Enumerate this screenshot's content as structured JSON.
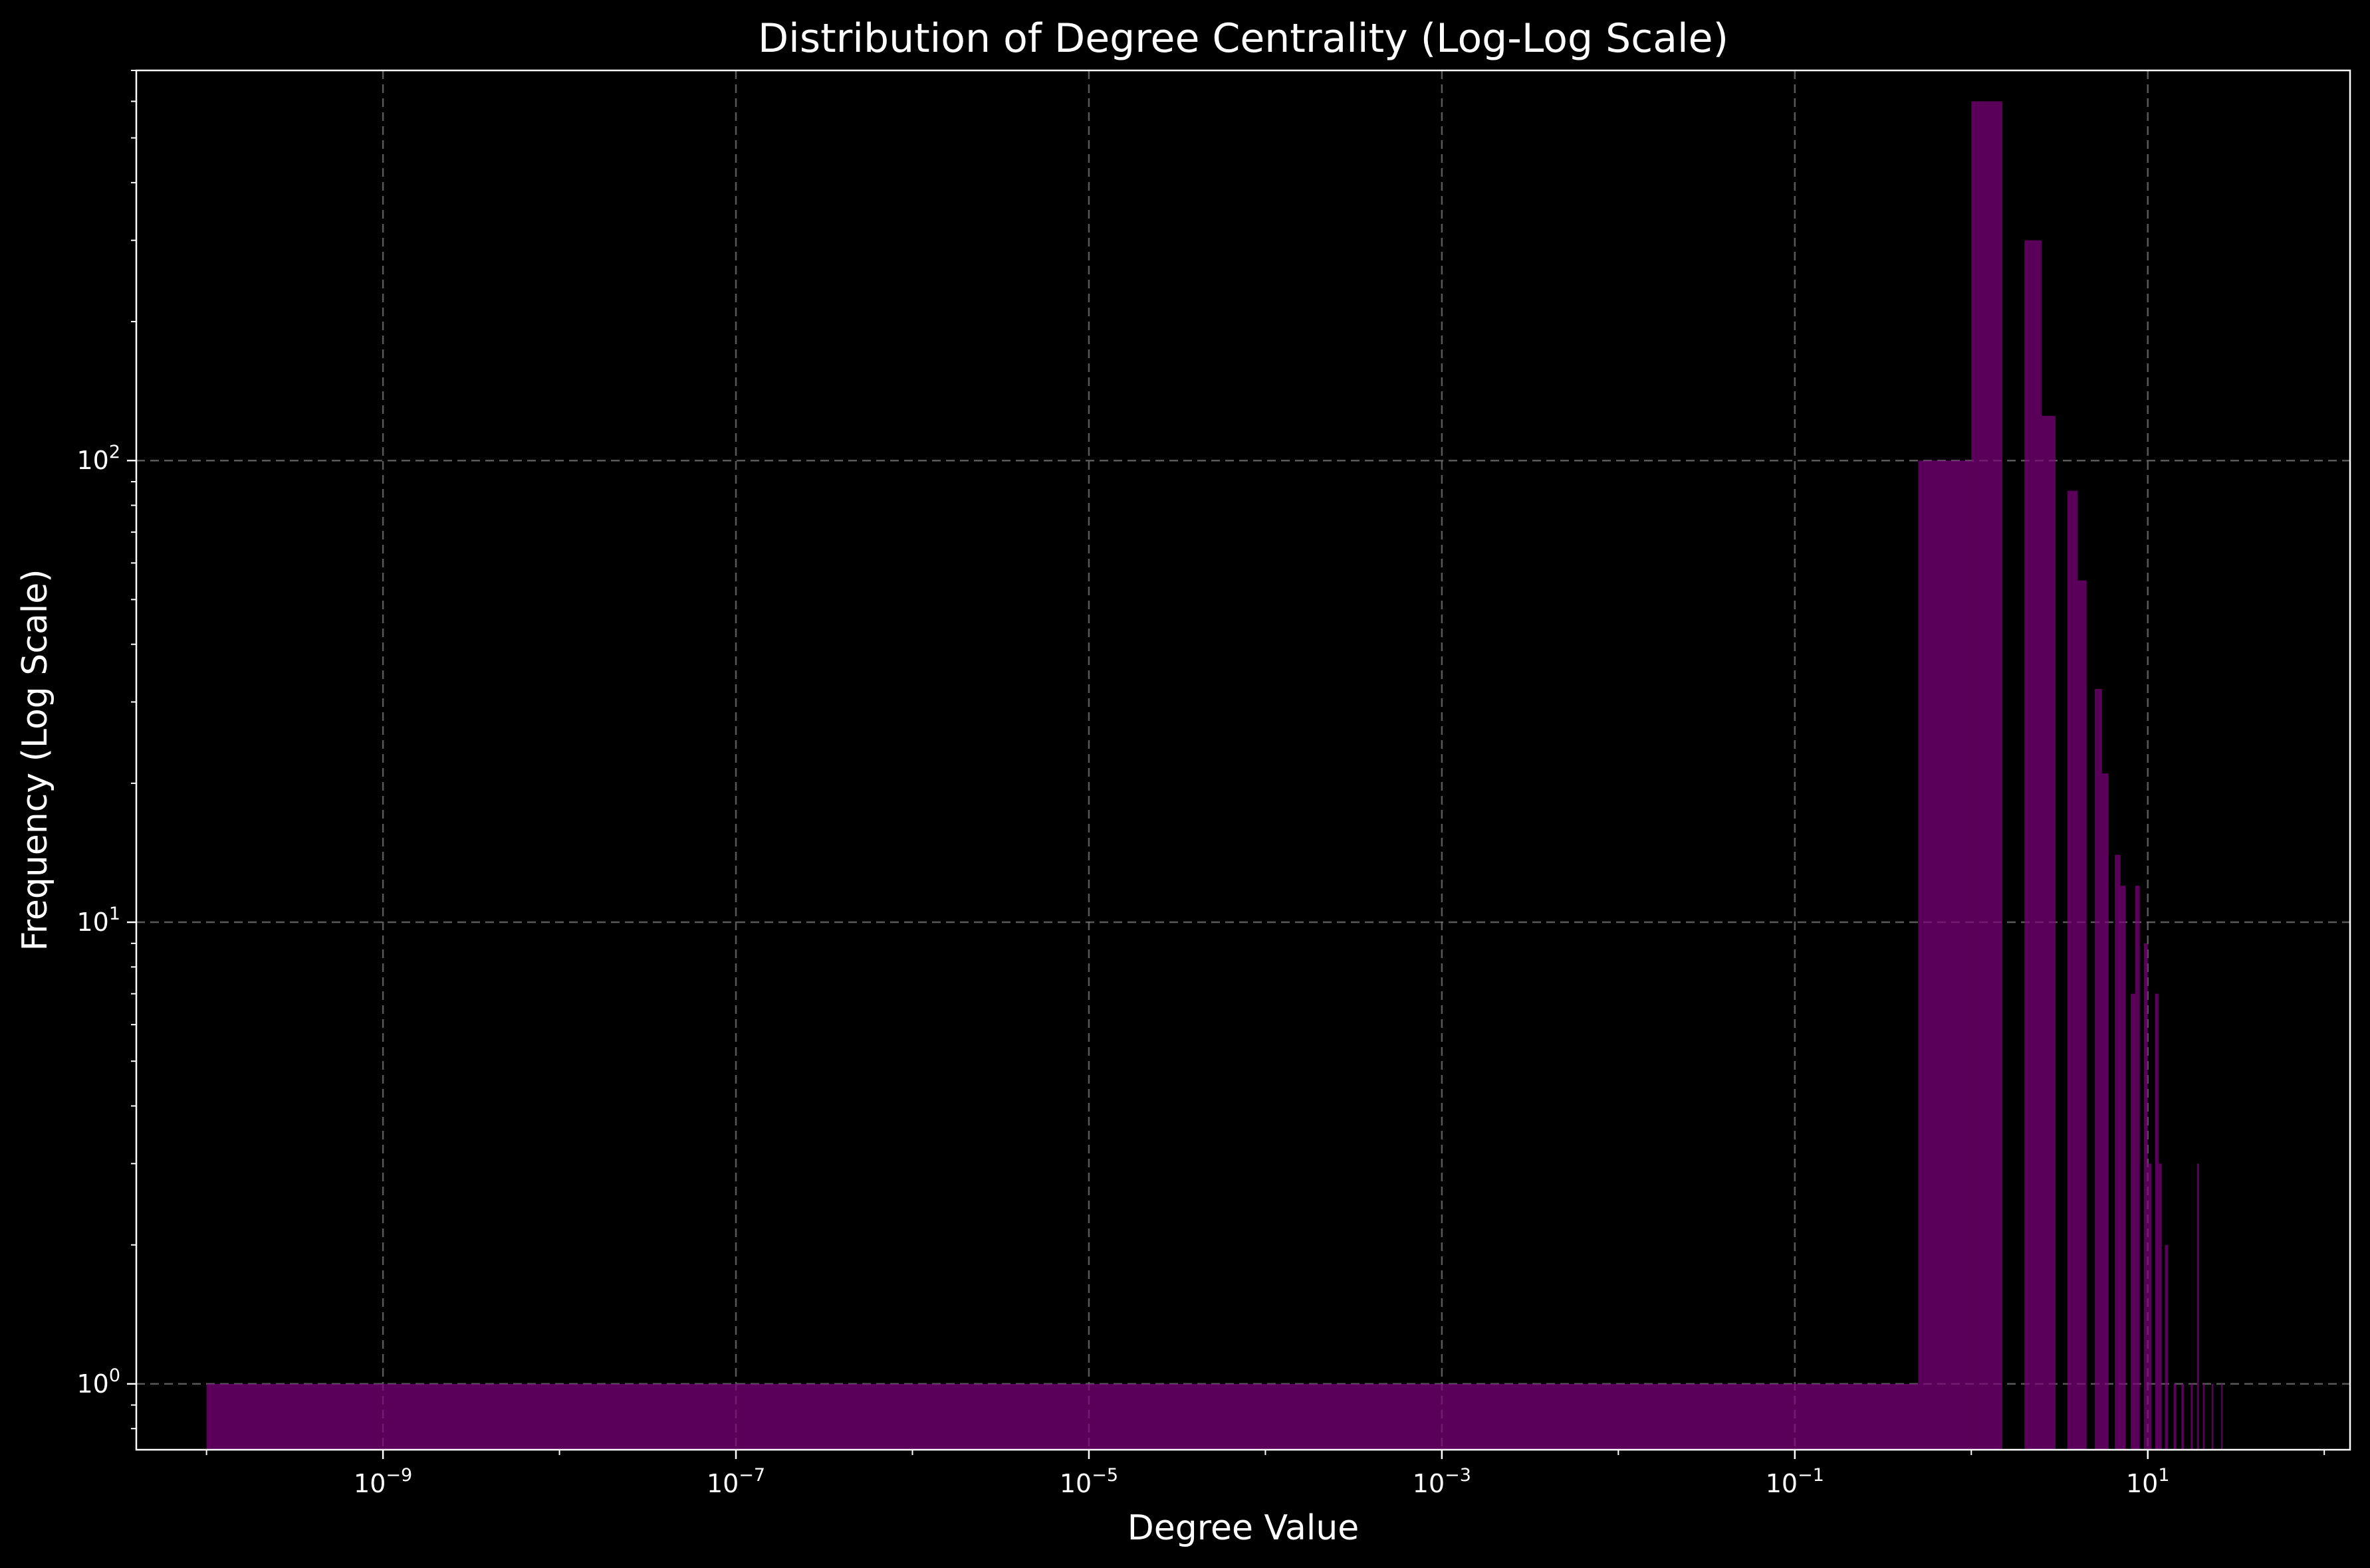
{
  "chart_data": {
    "type": "bar",
    "title": "Distribution of Degree Centrality (Log-Log Scale)",
    "xlabel": "Degree Value",
    "ylabel": "Frequency (Log Scale)",
    "xscale": "log",
    "yscale": "log",
    "xlim": [
      4e-11,
      140
    ],
    "ylim": [
      0.72,
      700
    ],
    "grid": true,
    "bar_color": "#800080",
    "bar_alpha": 0.7,
    "x_ticks": [
      {
        "base": "10",
        "exp": "−9",
        "value": 1e-09
      },
      {
        "base": "10",
        "exp": "−7",
        "value": 1e-07
      },
      {
        "base": "10",
        "exp": "−5",
        "value": 1e-05
      },
      {
        "base": "10",
        "exp": "−3",
        "value": 0.001
      },
      {
        "base": "10",
        "exp": "−1",
        "value": 0.1
      },
      {
        "base": "10",
        "exp": "1",
        "value": 10
      }
    ],
    "y_ticks": [
      {
        "base": "10",
        "exp": "0",
        "value": 1
      },
      {
        "base": "10",
        "exp": "1",
        "value": 10
      },
      {
        "base": "10",
        "exp": "2",
        "value": 100
      }
    ],
    "bars": [
      {
        "x0": 1e-10,
        "x1": 0.5,
        "value": 1
      },
      {
        "x0": 0.5,
        "x1": 1.0,
        "value": 100
      },
      {
        "x0": 1.0,
        "x1": 1.5,
        "value": 600
      },
      {
        "x0": 2.0,
        "x1": 2.5,
        "value": 300
      },
      {
        "x0": 2.5,
        "x1": 3.0,
        "value": 125
      },
      {
        "x0": 3.5,
        "x1": 4.0,
        "value": 86
      },
      {
        "x0": 4.0,
        "x1": 4.5,
        "value": 55
      },
      {
        "x0": 5.0,
        "x1": 5.5,
        "value": 32
      },
      {
        "x0": 5.5,
        "x1": 6.0,
        "value": 21
      },
      {
        "x0": 6.5,
        "x1": 7.0,
        "value": 14
      },
      {
        "x0": 7.0,
        "x1": 7.5,
        "value": 12
      },
      {
        "x0": 8.0,
        "x1": 8.5,
        "value": 7
      },
      {
        "x0": 8.5,
        "x1": 9.0,
        "value": 12
      },
      {
        "x0": 9.5,
        "x1": 10.0,
        "value": 9
      },
      {
        "x0": 10.0,
        "x1": 10.5,
        "value": 3
      },
      {
        "x0": 11.0,
        "x1": 11.5,
        "value": 7
      },
      {
        "x0": 11.5,
        "x1": 12.0,
        "value": 3
      },
      {
        "x0": 12.5,
        "x1": 13.0,
        "value": 2
      },
      {
        "x0": 14.0,
        "x1": 14.5,
        "value": 1
      },
      {
        "x0": 15.5,
        "x1": 16.0,
        "value": 1
      },
      {
        "x0": 17.5,
        "x1": 18.0,
        "value": 1
      },
      {
        "x0": 19.0,
        "x1": 19.5,
        "value": 3
      },
      {
        "x0": 20.5,
        "x1": 21.0,
        "value": 1
      },
      {
        "x0": 23.0,
        "x1": 23.5,
        "value": 1
      },
      {
        "x0": 26.0,
        "x1": 26.5,
        "value": 1
      }
    ]
  }
}
